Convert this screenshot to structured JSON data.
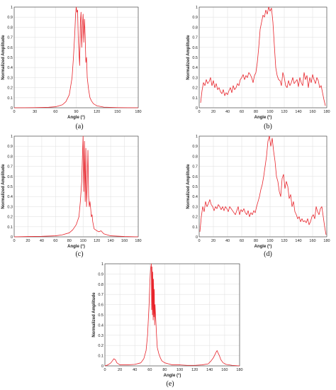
{
  "colors": {
    "line": "#e8242b",
    "grid": "#e3e3e3",
    "axis": "#333333"
  },
  "chart_data": [
    {
      "panel_label": "(a)",
      "type": "line",
      "xlabel": "Angle (°)",
      "ylabel": "Normalized Amplitude",
      "xlim": [
        0,
        180
      ],
      "ylim": [
        0,
        1
      ],
      "xticks": [
        "0",
        "30",
        "60",
        "90",
        "120",
        "150",
        "180"
      ],
      "yticks": [
        "0",
        "0.1",
        "0.2",
        "0.3",
        "0.4",
        "0.5",
        "0.6",
        "0.7",
        "0.8",
        "0.9",
        "1"
      ],
      "grid": true,
      "series": [
        {
          "x": [
            0,
            30,
            50,
            60,
            70,
            75,
            80,
            84,
            86,
            88,
            89,
            90,
            91,
            92,
            93,
            94,
            95,
            96,
            97,
            98,
            99,
            100,
            101,
            102,
            103,
            104,
            105,
            106,
            108,
            110,
            112,
            115,
            120,
            130,
            150,
            180
          ],
          "y": [
            0,
            0.002,
            0.005,
            0.01,
            0.03,
            0.06,
            0.13,
            0.3,
            0.5,
            0.75,
            0.92,
            1.0,
            0.95,
            0.97,
            0.68,
            0.55,
            0.42,
            0.85,
            0.95,
            0.6,
            0.82,
            0.93,
            0.65,
            0.88,
            0.72,
            0.45,
            0.5,
            0.3,
            0.18,
            0.1,
            0.07,
            0.04,
            0.02,
            0.006,
            0.002,
            0
          ]
        }
      ]
    },
    {
      "panel_label": "(b)",
      "type": "line",
      "xlabel": "Angle (°)",
      "ylabel": "Normalized Amplitude",
      "xlim": [
        0,
        180
      ],
      "ylim": [
        0,
        1
      ],
      "xticks": [
        "0",
        "20",
        "40",
        "60",
        "80",
        "100",
        "120",
        "140",
        "160",
        "180"
      ],
      "yticks": [
        "0",
        "0.1",
        "0.2",
        "0.3",
        "0.4",
        "0.5",
        "0.6",
        "0.7",
        "0.8",
        "0.9",
        "1"
      ],
      "grid": true,
      "series": [
        {
          "x": [
            2,
            4,
            6,
            8,
            10,
            12,
            14,
            16,
            18,
            20,
            22,
            24,
            26,
            28,
            30,
            32,
            34,
            36,
            38,
            40,
            42,
            44,
            46,
            48,
            50,
            52,
            54,
            56,
            58,
            60,
            62,
            64,
            66,
            68,
            70,
            72,
            74,
            76,
            78,
            80,
            82,
            84,
            86,
            88,
            90,
            92,
            94,
            96,
            98,
            100,
            102,
            104,
            106,
            108,
            110,
            112,
            114,
            116,
            118,
            120,
            122,
            124,
            126,
            128,
            130,
            132,
            134,
            136,
            138,
            140,
            142,
            144,
            146,
            148,
            150,
            152,
            154,
            156,
            158,
            160,
            162,
            164,
            166,
            168,
            170,
            172,
            174,
            176,
            178
          ],
          "y": [
            0.05,
            0.17,
            0.25,
            0.22,
            0.28,
            0.24,
            0.26,
            0.3,
            0.22,
            0.27,
            0.2,
            0.24,
            0.18,
            0.2,
            0.16,
            0.14,
            0.18,
            0.12,
            0.15,
            0.13,
            0.17,
            0.2,
            0.15,
            0.22,
            0.18,
            0.2,
            0.24,
            0.22,
            0.28,
            0.3,
            0.33,
            0.28,
            0.32,
            0.3,
            0.35,
            0.33,
            0.3,
            0.25,
            0.32,
            0.35,
            0.45,
            0.6,
            0.78,
            0.85,
            0.92,
            0.9,
            0.97,
            0.93,
            1.0,
            0.96,
            0.99,
            0.85,
            0.62,
            0.4,
            0.32,
            0.28,
            0.27,
            0.22,
            0.35,
            0.3,
            0.22,
            0.2,
            0.27,
            0.22,
            0.25,
            0.3,
            0.24,
            0.26,
            0.28,
            0.21,
            0.3,
            0.25,
            0.22,
            0.35,
            0.28,
            0.32,
            0.2,
            0.3,
            0.25,
            0.33,
            0.28,
            0.24,
            0.3,
            0.27,
            0.2,
            0.22,
            0.15,
            0.08,
            0.02
          ]
        }
      ]
    },
    {
      "panel_label": "(c)",
      "type": "line",
      "xlabel": "Angle (°)",
      "ylabel": "Normalized Amplitude",
      "xlim": [
        0,
        180
      ],
      "ylim": [
        0,
        1
      ],
      "xticks": [
        "0",
        "20",
        "40",
        "60",
        "80",
        "100",
        "120",
        "140",
        "160",
        "180"
      ],
      "yticks": [
        "0",
        "0.1",
        "0.2",
        "0.3",
        "0.4",
        "0.5",
        "0.6",
        "0.7",
        "0.8",
        "0.9",
        "1"
      ],
      "grid": true,
      "series": [
        {
          "x": [
            0,
            20,
            40,
            60,
            70,
            80,
            85,
            90,
            94,
            96,
            98,
            99,
            100,
            101,
            102,
            103,
            104,
            105,
            106,
            107,
            108,
            109,
            110,
            111,
            112,
            113,
            114,
            116,
            118,
            120,
            123,
            126,
            130,
            140,
            160,
            180
          ],
          "y": [
            0,
            0.003,
            0.005,
            0.01,
            0.02,
            0.04,
            0.07,
            0.12,
            0.2,
            0.35,
            0.55,
            0.8,
            1.0,
            0.45,
            0.95,
            0.35,
            0.88,
            0.3,
            0.55,
            0.86,
            0.4,
            0.3,
            0.35,
            0.28,
            0.2,
            0.22,
            0.15,
            0.08,
            0.07,
            0.06,
            0.05,
            0.06,
            0.03,
            0.01,
            0.003,
            0
          ]
        }
      ]
    },
    {
      "panel_label": "(d)",
      "type": "line",
      "xlabel": "Angle (°)",
      "ylabel": "Normalized Amplitude",
      "xlim": [
        0,
        180
      ],
      "ylim": [
        0,
        1
      ],
      "xticks": [
        "0",
        "20",
        "40",
        "60",
        "80",
        "100",
        "120",
        "140",
        "160",
        "180"
      ],
      "yticks": [
        "0",
        "0.1",
        "0.2",
        "0.3",
        "0.4",
        "0.5",
        "0.6",
        "0.7",
        "0.8",
        "0.9",
        "1"
      ],
      "grid": true,
      "series": [
        {
          "x": [
            1,
            3,
            5,
            7,
            9,
            11,
            13,
            15,
            17,
            19,
            21,
            23,
            25,
            27,
            29,
            31,
            33,
            35,
            37,
            39,
            41,
            43,
            45,
            47,
            49,
            51,
            53,
            55,
            57,
            59,
            61,
            63,
            65,
            67,
            69,
            71,
            73,
            75,
            77,
            79,
            81,
            83,
            85,
            87,
            89,
            91,
            93,
            95,
            97,
            99,
            101,
            103,
            105,
            107,
            109,
            111,
            113,
            115,
            117,
            119,
            121,
            123,
            125,
            127,
            129,
            131,
            133,
            135,
            137,
            139,
            141,
            143,
            145,
            147,
            149,
            151,
            153,
            155,
            157,
            159,
            161,
            163,
            165,
            167,
            169,
            171,
            173,
            175,
            177,
            179
          ],
          "y": [
            0.05,
            0.2,
            0.3,
            0.25,
            0.35,
            0.3,
            0.33,
            0.37,
            0.32,
            0.3,
            0.26,
            0.3,
            0.28,
            0.32,
            0.3,
            0.27,
            0.3,
            0.26,
            0.3,
            0.28,
            0.25,
            0.3,
            0.28,
            0.26,
            0.24,
            0.22,
            0.26,
            0.3,
            0.22,
            0.27,
            0.25,
            0.28,
            0.24,
            0.22,
            0.26,
            0.2,
            0.24,
            0.22,
            0.26,
            0.24,
            0.3,
            0.35,
            0.4,
            0.47,
            0.52,
            0.6,
            0.7,
            0.8,
            0.95,
            1.0,
            0.9,
            0.98,
            0.85,
            0.75,
            0.6,
            0.55,
            0.45,
            0.4,
            0.58,
            0.62,
            0.48,
            0.55,
            0.5,
            0.38,
            0.42,
            0.3,
            0.35,
            0.25,
            0.22,
            0.18,
            0.2,
            0.15,
            0.18,
            0.15,
            0.16,
            0.14,
            0.18,
            0.12,
            0.15,
            0.2,
            0.22,
            0.18,
            0.3,
            0.25,
            0.22,
            0.28,
            0.3,
            0.2,
            0.1,
            0.02
          ]
        }
      ]
    },
    {
      "panel_label": "(e)",
      "type": "line",
      "xlabel": "Angle (°)",
      "ylabel": "Normalized Amplitude",
      "xlim": [
        0,
        180
      ],
      "ylim": [
        0,
        1
      ],
      "xticks": [
        "0",
        "20",
        "40",
        "60",
        "80",
        "100",
        "120",
        "140",
        "160",
        "180"
      ],
      "yticks": [
        "0",
        "0.1",
        "0.2",
        "0.3",
        "0.4",
        "0.5",
        "0.6",
        "0.7",
        "0.8",
        "0.9",
        "1"
      ],
      "grid": true,
      "series": [
        {
          "x": [
            0,
            4,
            8,
            10,
            12,
            14,
            16,
            20,
            30,
            40,
            48,
            52,
            55,
            57,
            58,
            59,
            60,
            61,
            62,
            62.5,
            63,
            63.5,
            64,
            64.5,
            65,
            65.5,
            66,
            66.5,
            67,
            68,
            69,
            70,
            72,
            74,
            76,
            80,
            85,
            90,
            100,
            110,
            120,
            130,
            138,
            142,
            145,
            147,
            149,
            150,
            151,
            153,
            155,
            158,
            162,
            170,
            180
          ],
          "y": [
            0,
            0.01,
            0.03,
            0.05,
            0.07,
            0.06,
            0.03,
            0.01,
            0.01,
            0.015,
            0.03,
            0.07,
            0.15,
            0.3,
            0.45,
            0.6,
            0.8,
            0.95,
            1.0,
            0.55,
            0.97,
            0.5,
            0.92,
            0.45,
            0.85,
            0.48,
            0.75,
            0.4,
            0.6,
            0.45,
            0.3,
            0.18,
            0.12,
            0.08,
            0.05,
            0.03,
            0.02,
            0.01,
            0.01,
            0.005,
            0.005,
            0.01,
            0.02,
            0.05,
            0.08,
            0.11,
            0.14,
            0.15,
            0.13,
            0.1,
            0.06,
            0.03,
            0.015,
            0.005,
            0
          ]
        }
      ]
    }
  ]
}
